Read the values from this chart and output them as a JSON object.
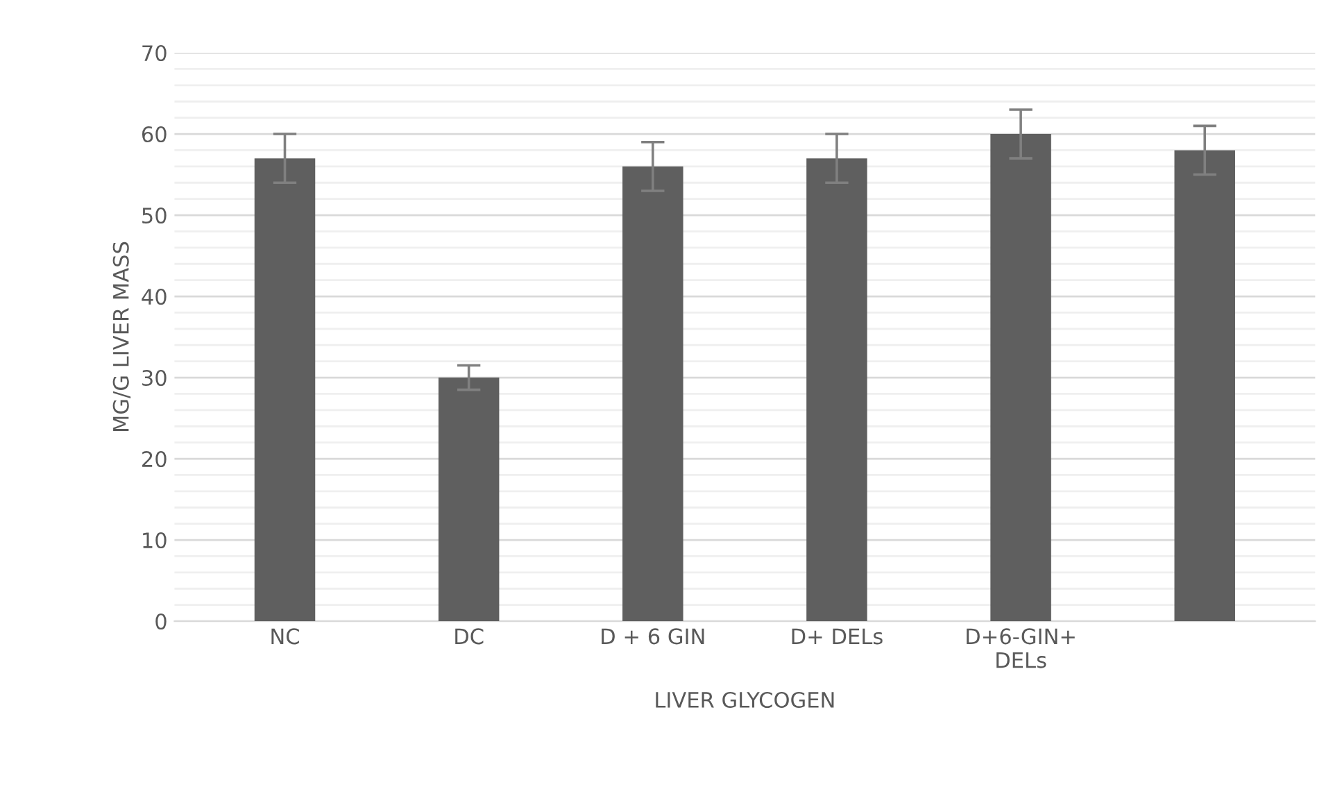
{
  "chart_data": {
    "type": "bar",
    "xlabel": "LIVER GLYCOGEN",
    "ylabel": "MG/G LIVER MASS",
    "categories": [
      "NC",
      "DC",
      "D + 6 GIN",
      "D+ DELs",
      "D+6-GIN+\nDELs",
      null
    ],
    "values": [
      57,
      30,
      56,
      57,
      60,
      58
    ],
    "errors": [
      3,
      1.5,
      3,
      3,
      3,
      3
    ],
    "color": "#5f5f5f",
    "ylim": [
      0,
      70
    ],
    "yticks": [
      0,
      {
        "value": 2,
        "label": null
      },
      {
        "value": 4,
        "label": null
      },
      {
        "value": 6,
        "label": null
      },
      {
        "value": 8,
        "label": null
      },
      10,
      {
        "value": 12,
        "label": null
      },
      {
        "value": 14,
        "label": null
      },
      {
        "value": 16,
        "label": null
      },
      {
        "value": 18,
        "label": null
      },
      20,
      {
        "value": 22,
        "label": null
      },
      {
        "value": 24,
        "label": null
      },
      {
        "value": 26,
        "label": null
      },
      {
        "value": 28,
        "label": null
      },
      30,
      {
        "value": 32,
        "label": null
      },
      {
        "value": 34,
        "label": null
      },
      {
        "value": 36,
        "label": null
      },
      {
        "value": 38,
        "label": null
      },
      40,
      {
        "value": 42,
        "label": null
      },
      {
        "value": 44,
        "label": null
      },
      {
        "value": 46,
        "label": null
      },
      {
        "value": 48,
        "label": null
      },
      50,
      {
        "value": 52,
        "label": null
      },
      {
        "value": 54,
        "label": null
      },
      {
        "value": 56,
        "label": null
      },
      {
        "value": 58,
        "label": null
      },
      60,
      {
        "value": 62,
        "label": null
      },
      {
        "value": 64,
        "label": null
      },
      {
        "value": 66,
        "label": null
      },
      {
        "value": 68,
        "label": null
      },
      70
    ],
    "grid": "y"
  }
}
